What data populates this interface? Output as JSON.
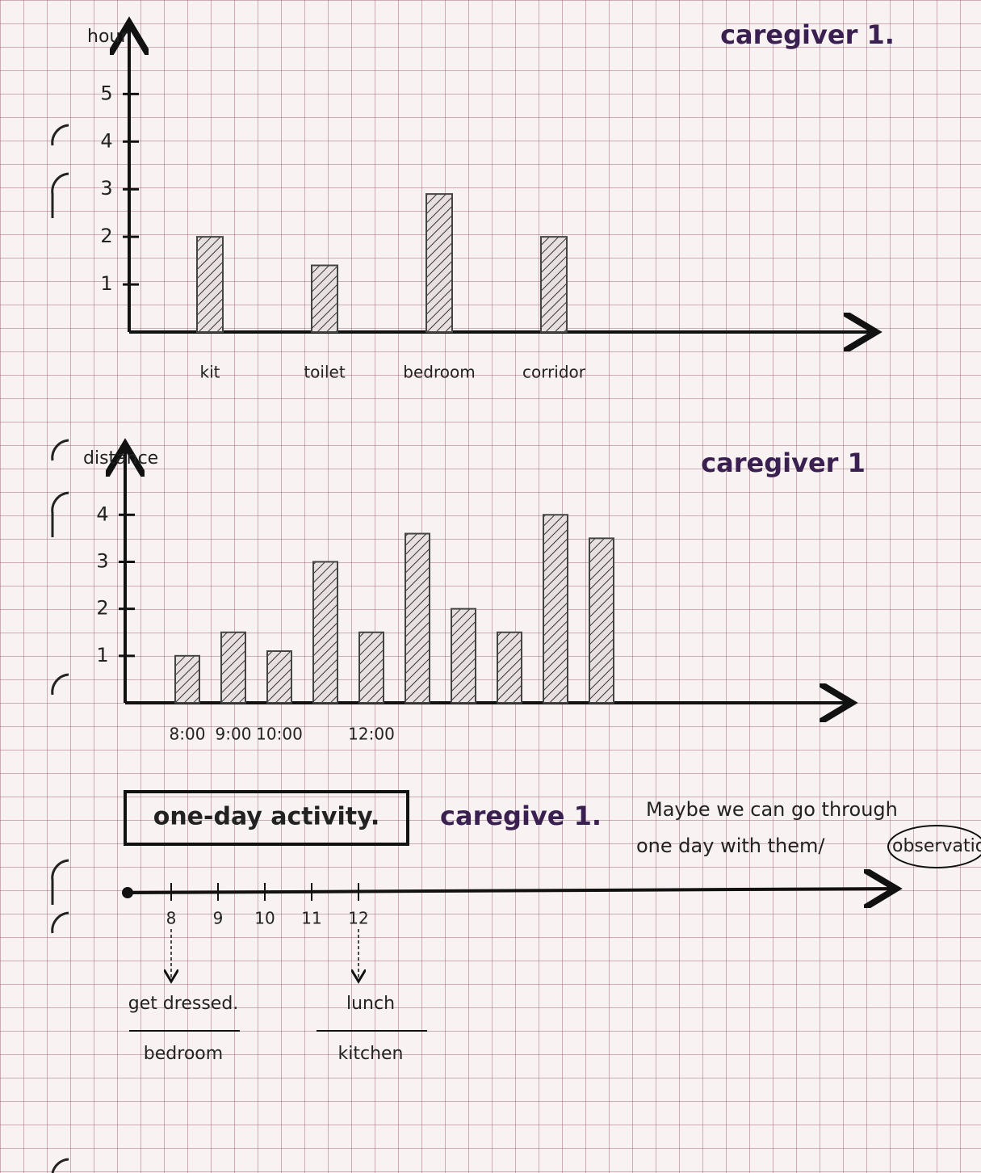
{
  "chart_data": [
    {
      "type": "bar",
      "title": "caregiver 1.",
      "y_label": "hour",
      "categories": [
        "kit",
        "toilet",
        "bedroom",
        "corridor"
      ],
      "values": [
        2,
        1.4,
        2.9,
        2
      ],
      "ylim": [
        0,
        6.5
      ],
      "yticks": [
        1,
        2,
        3,
        4,
        5
      ],
      "color": "#444"
    },
    {
      "type": "bar",
      "title": "caregiver 1",
      "y_label": "distance",
      "categories": [
        "8:00",
        "9:00",
        "10:00",
        null,
        "12:00",
        null,
        null,
        null,
        null,
        null
      ],
      "values": [
        1,
        1.5,
        1.1,
        3,
        1.5,
        3.6,
        2,
        1.5,
        4,
        3.5
      ],
      "ylim": [
        0,
        5.5
      ],
      "yticks": [
        1,
        2,
        3,
        4
      ],
      "color": "#444"
    }
  ],
  "timeline": {
    "title": "one-day activity.",
    "subtitle": "caregive 1.",
    "note": [
      "Maybe we can go through",
      "one day with them/"
    ],
    "circled": "observatio",
    "ticks": [
      "8",
      "9",
      "10",
      "11",
      "12"
    ],
    "events": [
      {
        "activity": "get dressed.",
        "room": "bedroom"
      },
      {
        "activity": "lunch",
        "room": "kitchen"
      }
    ]
  }
}
